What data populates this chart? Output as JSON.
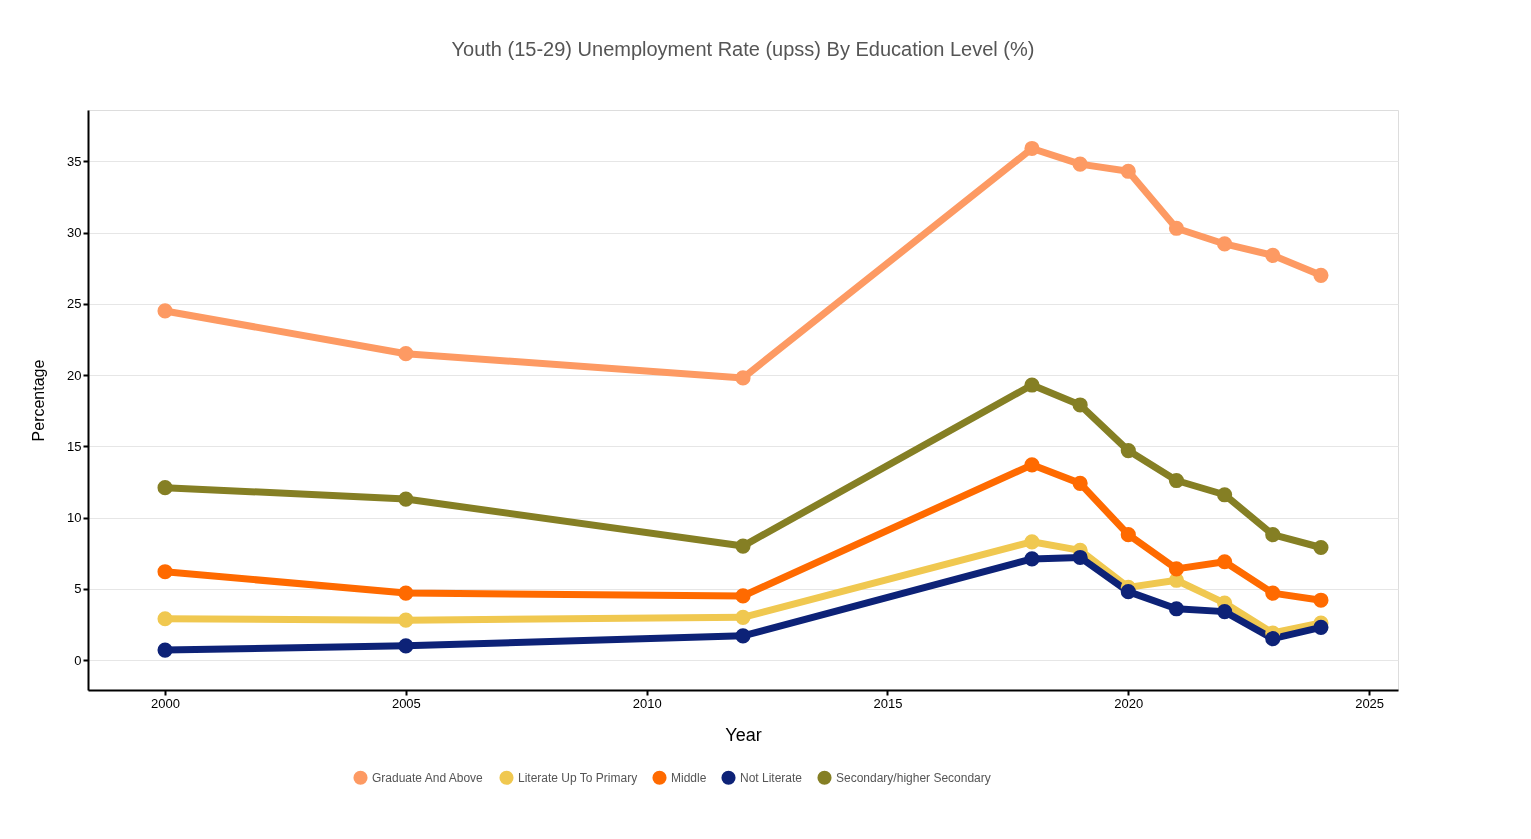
{
  "chart_data": {
    "type": "line",
    "title": "Youth (15-29) Unemployment Rate (upss) By Education Level (%)",
    "xlabel": "Year",
    "ylabel": "Percentage",
    "x": [
      2000,
      2005,
      2012,
      2018,
      2019,
      2020,
      2021,
      2022,
      2023,
      2024
    ],
    "series": [
      {
        "name": "Graduate And Above",
        "color": "#fd9a63",
        "values": [
          24.5,
          21.5,
          19.8,
          35.9,
          34.8,
          34.3,
          30.3,
          29.2,
          28.4,
          27.0
        ]
      },
      {
        "name": "Literate Up To Primary",
        "color": "#f0c850",
        "values": [
          2.9,
          2.8,
          3.0,
          8.3,
          7.7,
          5.1,
          5.6,
          4.0,
          1.9,
          2.6
        ]
      },
      {
        "name": "Middle",
        "color": "#ff6a00",
        "values": [
          6.2,
          4.7,
          4.5,
          13.7,
          12.4,
          8.8,
          6.4,
          6.9,
          4.7,
          4.2
        ]
      },
      {
        "name": "Not Literate",
        "color": "#0d2277",
        "values": [
          0.7,
          1.0,
          1.7,
          7.1,
          7.2,
          4.8,
          3.6,
          3.4,
          1.5,
          2.3
        ]
      },
      {
        "name": "Secondary/higher Secondary",
        "color": "#857f24",
        "values": [
          12.1,
          11.3,
          8.0,
          19.3,
          17.9,
          14.7,
          12.6,
          11.6,
          8.8,
          7.9
        ]
      }
    ],
    "xlim": [
      1998.4,
      2025.6
    ],
    "xticks": [
      2000,
      2005,
      2010,
      2015,
      2020,
      2025
    ],
    "ylim": [
      -2.1,
      38.6
    ],
    "yticks": [
      0,
      5,
      10,
      15,
      20,
      25,
      30,
      35
    ],
    "grid": "y",
    "legend": "bottom",
    "marker": "circle",
    "line_style": "solid"
  }
}
